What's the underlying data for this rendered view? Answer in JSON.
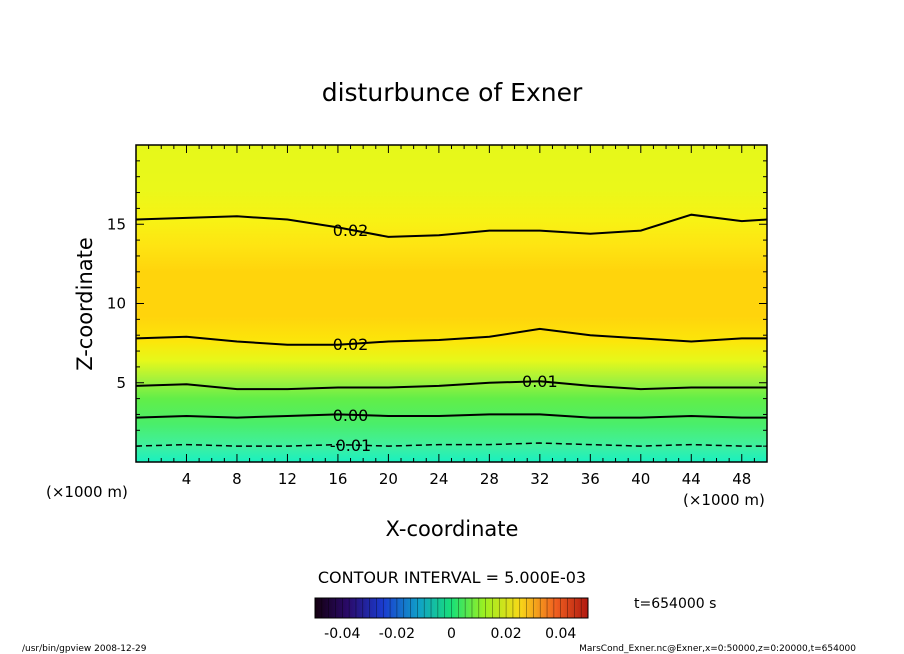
{
  "chart_data": {
    "type": "heatmap",
    "title": "disturbunce of Exner",
    "xlabel": "X-coordinate",
    "ylabel": "Z-coordinate",
    "x_unit_label_left": "(×1000 m)",
    "x_unit_label_right": "(×1000 m)",
    "xlim": [
      0,
      50
    ],
    "ylim": [
      0,
      20
    ],
    "x_ticks": [
      "4",
      "8",
      "12",
      "16",
      "20",
      "24",
      "28",
      "32",
      "36",
      "40",
      "44",
      "48"
    ],
    "y_ticks": [
      "5",
      "10",
      "15"
    ],
    "z_levels": [
      0,
      2,
      4,
      6,
      8,
      10,
      12,
      14,
      16,
      18,
      20
    ],
    "z_profile": [
      -0.018,
      -0.003,
      0.006,
      0.015,
      0.026,
      0.03,
      0.03,
      0.028,
      0.017,
      0.012,
      0.008
    ],
    "x_samples": [
      0,
      4,
      8,
      12,
      16,
      20,
      24,
      28,
      32,
      36,
      40,
      44,
      48,
      50
    ],
    "contours": [
      {
        "label": "0.02",
        "z": [
          15.3,
          15.4,
          15.5,
          15.3,
          14.8,
          14.2,
          14.3,
          14.6,
          14.6,
          14.4,
          14.6,
          15.6,
          15.2,
          15.3
        ]
      },
      {
        "label": "0.02",
        "z": [
          7.8,
          7.9,
          7.6,
          7.4,
          7.4,
          7.6,
          7.7,
          7.9,
          8.4,
          8.0,
          7.8,
          7.6,
          7.8,
          7.8
        ]
      },
      {
        "label": "0.01",
        "z": [
          4.8,
          4.9,
          4.6,
          4.6,
          4.7,
          4.7,
          4.8,
          5.0,
          5.1,
          4.8,
          4.6,
          4.7,
          4.7,
          4.7
        ]
      },
      {
        "label": "0.00",
        "z": [
          2.8,
          2.9,
          2.8,
          2.9,
          3.0,
          2.9,
          2.9,
          3.0,
          3.0,
          2.8,
          2.8,
          2.9,
          2.8,
          2.8
        ]
      },
      {
        "label": "-0.01",
        "z": [
          1.0,
          1.1,
          1.0,
          1.0,
          1.1,
          1.0,
          1.1,
          1.1,
          1.2,
          1.1,
          1.0,
          1.1,
          1.0,
          1.0
        ]
      }
    ],
    "contour_interval_text": "CONTOUR INTERVAL = 5.000E-03",
    "colorbar": {
      "ticks": [
        "-0.04",
        "-0.02",
        "0",
        "0.02",
        "0.04"
      ],
      "range": [
        -0.05,
        0.05
      ]
    },
    "time_text": "t=654000 s",
    "footer_left": "/usr/bin/gpview   2008-12-29",
    "footer_right": "MarsCond_Exner.nc@Exner,x=0:50000,z=0:20000,t=654000",
    "grid": false
  }
}
